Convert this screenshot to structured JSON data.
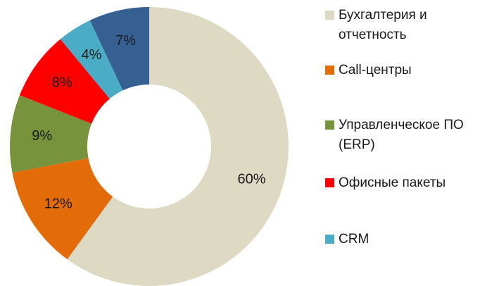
{
  "chart_data": {
    "type": "pie",
    "categories": [
      "Бухгалтерия и отчетность",
      "Call-центры",
      "Управленческое ПО (ERP)",
      "Офисные пакеты",
      "CRM",
      null
    ],
    "values": [
      60,
      12,
      9,
      8,
      4,
      7
    ],
    "value_labels": [
      "60%",
      "12%",
      "9%",
      "8%",
      "4%",
      "7%"
    ],
    "colors": [
      "#ddd9c3",
      "#e36c09",
      "#77933c",
      "#ff0000",
      "#4bacc6",
      "#376092"
    ],
    "donut": true,
    "legend": "right"
  }
}
